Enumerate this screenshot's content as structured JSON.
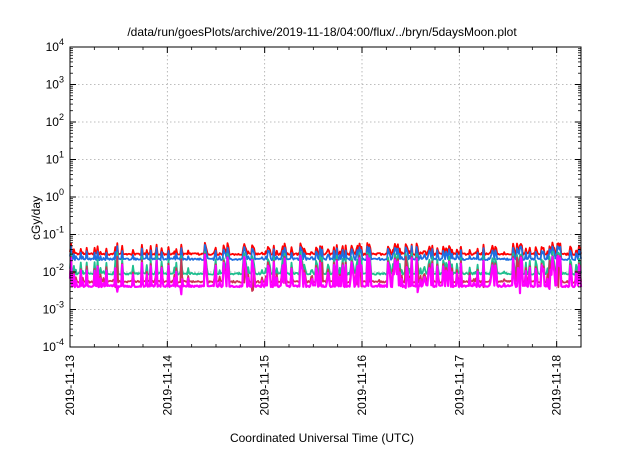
{
  "chart_data": {
    "type": "line",
    "title": "/data/run/goesPlots/archive/2019-11-18/04:00/flux/../bryn/5daysMoon.plot",
    "xlabel": "Coordinated Universal Time (UTC)",
    "ylabel": "cGy/day",
    "yscale": "log",
    "ylim": [
      0.0001,
      10000
    ],
    "xlim": [
      0,
      5.25
    ],
    "x_tick_labels": [
      "2019-11-13",
      "2019-11-14",
      "2019-11-15",
      "2019-11-16",
      "2019-11-17",
      "2019-11-18"
    ],
    "x_tick_values": [
      0,
      1,
      2,
      3,
      4,
      5
    ],
    "y_tick_labels": [
      {
        "base": "10",
        "exp": "4",
        "value": 10000
      },
      {
        "base": "10",
        "exp": "3",
        "value": 1000
      },
      {
        "base": "10",
        "exp": "2",
        "value": 100
      },
      {
        "base": "10",
        "exp": "1",
        "value": 10
      },
      {
        "base": "10",
        "exp": "0",
        "value": 1
      },
      {
        "base": "10",
        "exp": "-1",
        "value": 0.1
      },
      {
        "base": "10",
        "exp": "-2",
        "value": 0.01
      },
      {
        "base": "10",
        "exp": "-3",
        "value": 0.001
      },
      {
        "base": "10",
        "exp": "-4",
        "value": 0.0001
      }
    ],
    "grid": true,
    "series": [
      {
        "color": "#ff0000",
        "baseline": 0.03,
        "spike_peak": 0.06
      },
      {
        "color": "#1e6fe0",
        "baseline": 0.022,
        "spike_peak": 0.05
      },
      {
        "color": "#1fbf8f",
        "baseline": 0.009,
        "spike_peak": 0.035
      },
      {
        "color": "#cc3355",
        "baseline": 0.0055,
        "spike_peak": 0.03
      },
      {
        "color": "#ff00ff",
        "baseline": 0.0042,
        "spike_peak": 0.028
      }
    ]
  }
}
